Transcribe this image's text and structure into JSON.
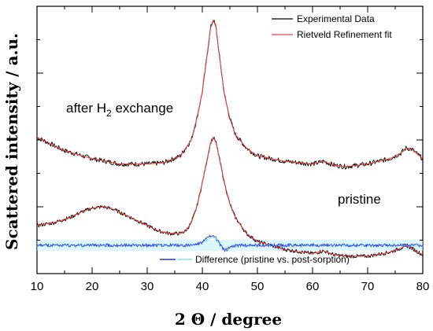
{
  "chart_data": {
    "type": "line",
    "xlabel": "2 Θ / degree",
    "ylabel": "Scattered intensity / a.u.",
    "xlim": [
      10,
      80
    ],
    "ylim": [
      0,
      1
    ],
    "x_ticks": [
      "10",
      "20",
      "30",
      "40",
      "50",
      "60",
      "70",
      "80"
    ],
    "y_tick_labels_shown": false,
    "grid": false,
    "legend": {
      "placement": "top-right",
      "entries": [
        {
          "name": "Experimental Data",
          "color": "#000000"
        },
        {
          "name": "Rietveld Refinement fit",
          "color": "#e8403a"
        }
      ]
    },
    "difference_legend": {
      "placement": "bottom-center",
      "entries": [
        {
          "name": "Difference (pristine vs. post-sorption)",
          "colors": [
            "#2f2fd6",
            "#7fe3ff"
          ]
        }
      ]
    },
    "annotations": {
      "upper_base": "after H",
      "upper_sub": "2",
      "upper_rest": " exchange",
      "lower": "pristine"
    },
    "series": [
      {
        "name": "after H2 exchange",
        "color": "#000000",
        "x": [
          10,
          15,
          20,
          25,
          30,
          33,
          36,
          38,
          39,
          40,
          41,
          41.5,
          42,
          42.5,
          43,
          44,
          45,
          46,
          48,
          50,
          55,
          60,
          62,
          64,
          66,
          70,
          74,
          76,
          77,
          78,
          80
        ],
        "values": [
          0.51,
          0.46,
          0.43,
          0.41,
          0.41,
          0.415,
          0.44,
          0.5,
          0.58,
          0.68,
          0.84,
          0.92,
          0.95,
          0.92,
          0.83,
          0.67,
          0.58,
          0.52,
          0.47,
          0.44,
          0.42,
          0.41,
          0.42,
          0.405,
          0.4,
          0.41,
          0.43,
          0.45,
          0.47,
          0.465,
          0.43
        ]
      },
      {
        "name": "pristine",
        "color": "#000000",
        "x": [
          10,
          13,
          16,
          18,
          20,
          22,
          24,
          26,
          28,
          30,
          32,
          34,
          36,
          37,
          38,
          39,
          40,
          41,
          41.5,
          42,
          42.5,
          43,
          44,
          45,
          46,
          48,
          50,
          55,
          60,
          62,
          64,
          66,
          70,
          74,
          76,
          77,
          78,
          80
        ],
        "values": [
          0.18,
          0.19,
          0.21,
          0.23,
          0.245,
          0.25,
          0.24,
          0.22,
          0.2,
          0.18,
          0.16,
          0.15,
          0.15,
          0.16,
          0.19,
          0.25,
          0.34,
          0.44,
          0.49,
          0.51,
          0.49,
          0.44,
          0.34,
          0.26,
          0.21,
          0.15,
          0.12,
          0.09,
          0.075,
          0.085,
          0.07,
          0.065,
          0.065,
          0.08,
          0.095,
          0.105,
          0.095,
          0.07
        ]
      },
      {
        "name": "Difference (pristine vs. post-sorption)",
        "color": "#2f2fd6",
        "x": [
          10,
          20,
          30,
          38,
          40,
          41,
          42,
          43,
          44,
          46,
          50,
          60,
          70,
          80
        ],
        "values": [
          0.0,
          0.0,
          0.0,
          0.0,
          0.01,
          0.03,
          0.04,
          0.01,
          -0.02,
          0.0,
          0.0,
          0.0,
          0.0,
          0.0
        ]
      }
    ]
  }
}
